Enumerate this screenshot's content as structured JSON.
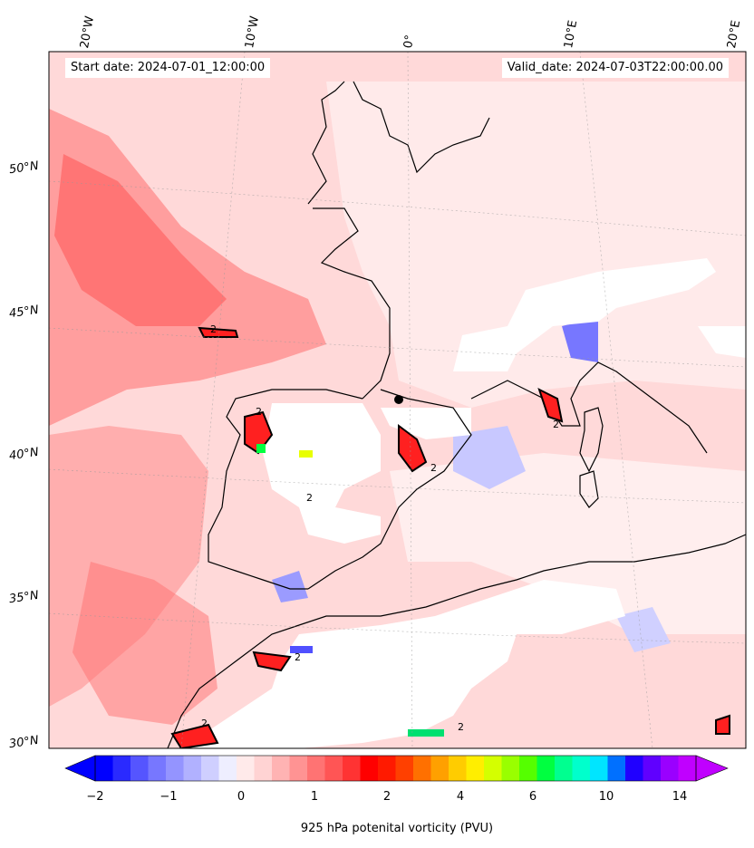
{
  "map": {
    "start_date": "Start date: 2024-07-01_12:00:00",
    "valid_date": "Valid_date: 2024-07-03T22:00:00.00",
    "lon_labels": [
      "20°W",
      "10°W",
      "0°",
      "10°E",
      "20°E"
    ],
    "lat_labels": [
      "50°N",
      "45°N",
      "40°N",
      "35°N",
      "30°N"
    ],
    "contour_label": "2",
    "background_color": "#ffd6d6",
    "land_mask_color": "#ffffff"
  },
  "colorbar": {
    "label": "925 hPa potenital vorticity (PVU)",
    "tick_labels": [
      "−2",
      "−1",
      "0",
      "1",
      "2",
      "4",
      "6",
      "10",
      "14"
    ],
    "colors": [
      "#0000ff",
      "#2a2aff",
      "#5555ff",
      "#7777ff",
      "#9494ff",
      "#b1b1ff",
      "#cfcfff",
      "#eeeeff",
      "#ffeaea",
      "#ffd3d3",
      "#ffb3b3",
      "#ff9393",
      "#ff7373",
      "#ff5555",
      "#ff3333",
      "#ff0000",
      "#ff1a00",
      "#ff4000",
      "#ff7000",
      "#ffa000",
      "#ffcc00",
      "#ffee00",
      "#d4ff00",
      "#99ff00",
      "#55ff00",
      "#00ff40",
      "#00ff90",
      "#00ffcc",
      "#00e5ff",
      "#0070ff",
      "#2000ff",
      "#6000ff",
      "#9a00ff",
      "#c000ff"
    ]
  }
}
